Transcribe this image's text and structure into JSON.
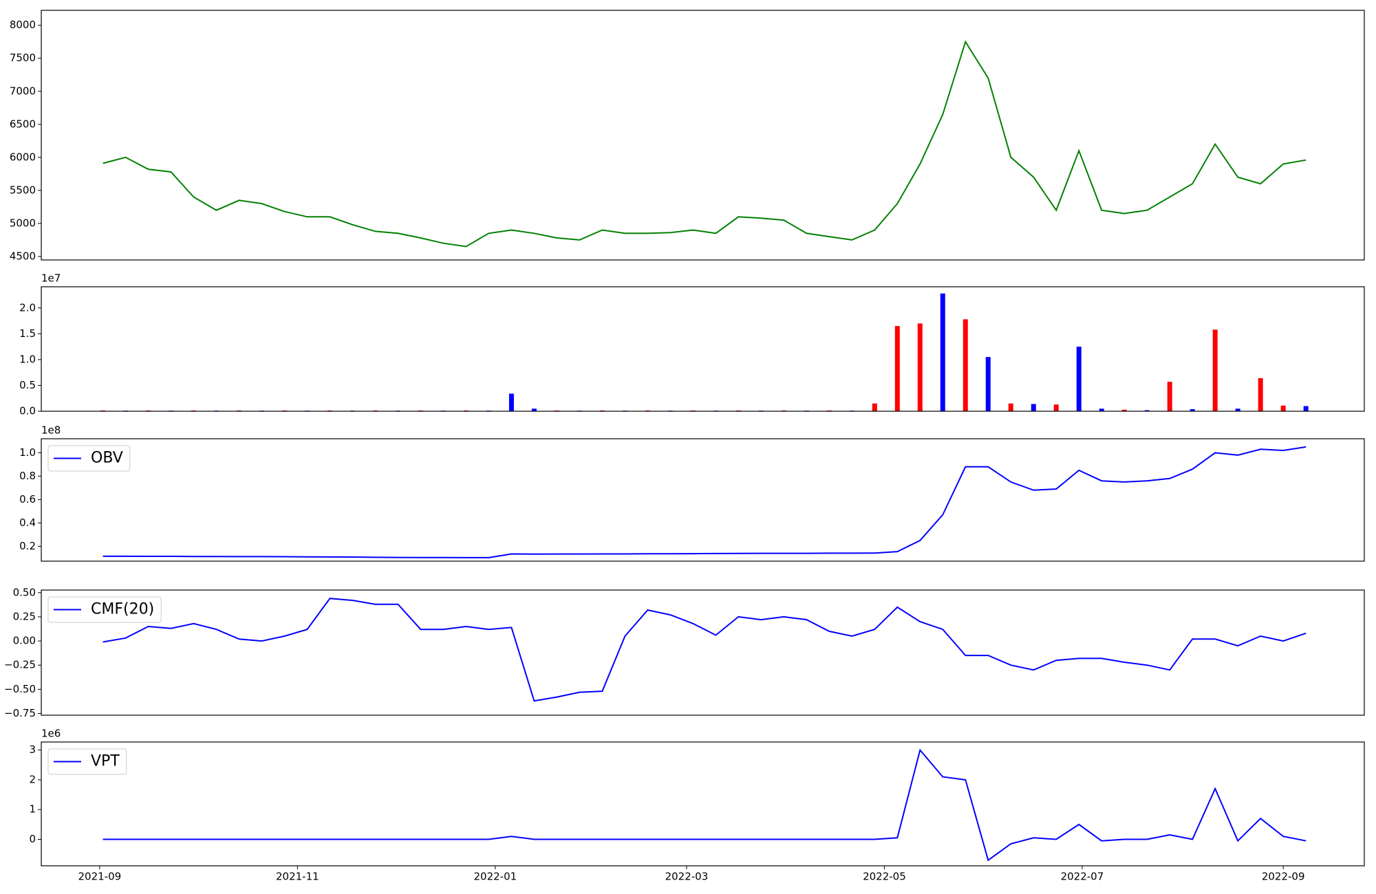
{
  "chart_data": {
    "x": [
      18872,
      18879,
      18886,
      18893,
      18900,
      18907,
      18914,
      18921,
      18928,
      18935,
      18942,
      18949,
      18956,
      18963,
      18970,
      18977,
      18984,
      18991,
      18998,
      19005,
      19012,
      19019,
      19026,
      19033,
      19040,
      19047,
      19054,
      19061,
      19068,
      19075,
      19082,
      19089,
      19096,
      19103,
      19110,
      19117,
      19124,
      19131,
      19138,
      19145,
      19152,
      19159,
      19166,
      19173,
      19180,
      19187,
      19194,
      19201,
      19208,
      19215,
      19222,
      19229,
      19236,
      19243
    ],
    "xlim": [
      18853,
      19261
    ],
    "xticks": [
      {
        "value": 18871,
        "label": "2021-09"
      },
      {
        "value": 18932,
        "label": "2021-11"
      },
      {
        "value": 18993,
        "label": "2022-01"
      },
      {
        "value": 19052,
        "label": "2022-03"
      },
      {
        "value": 19113,
        "label": "2022-05"
      },
      {
        "value": 19174,
        "label": "2022-07"
      },
      {
        "value": 19236,
        "label": "2022-09"
      }
    ],
    "panels": [
      {
        "type": "line",
        "ylim": [
          4447,
          8226
        ],
        "yticks": [
          4500,
          5000,
          5500,
          6000,
          6500,
          7000,
          7500,
          8000
        ],
        "series": [
          {
            "color": "green",
            "values": [
              5910,
              6000,
              5820,
              5780,
              5400,
              5200,
              5350,
              5300,
              5180,
              5100,
              5100,
              4980,
              4880,
              4850,
              4780,
              4700,
              4650,
              4850,
              4900,
              4850,
              4780,
              4750,
              4900,
              4850,
              4850,
              4860,
              4900,
              4850,
              5100,
              5080,
              5050,
              4850,
              4800,
              4750,
              4900,
              5300,
              5900,
              6650,
              7750,
              7200,
              6000,
              5700,
              5200,
              6100,
              5200,
              5150,
              5200,
              5400,
              5600,
              6200,
              5700,
              5600,
              5900,
              5960
            ]
          }
        ]
      },
      {
        "type": "bar",
        "offset_label": "1e7",
        "ylim": [
          0,
          24100000
        ],
        "yticks": [
          {
            "value": 0,
            "label": "0.0"
          },
          {
            "value": 5000000,
            "label": "0.5"
          },
          {
            "value": 10000000,
            "label": "1.0"
          },
          {
            "value": 15000000,
            "label": "1.5"
          },
          {
            "value": 20000000,
            "label": "2.0"
          }
        ],
        "series": [
          {
            "color": "red",
            "values": [
              150000,
              null,
              150000,
              null,
              150000,
              null,
              150000,
              null,
              150000,
              null,
              150000,
              null,
              150000,
              null,
              150000,
              null,
              150000,
              null,
              null,
              null,
              150000,
              null,
              150000,
              null,
              150000,
              null,
              150000,
              null,
              150000,
              null,
              150000,
              null,
              150000,
              null,
              1500000,
              16500000,
              17000000,
              null,
              17800000,
              null,
              1500000,
              null,
              1300000,
              null,
              null,
              300000,
              null,
              5700000,
              null,
              15800000,
              null,
              6400000,
              1100000,
              null
            ]
          },
          {
            "color": "blue",
            "values": [
              null,
              120000,
              null,
              120000,
              null,
              120000,
              null,
              120000,
              null,
              120000,
              null,
              120000,
              null,
              120000,
              null,
              120000,
              null,
              120000,
              3400000,
              500000,
              null,
              120000,
              null,
              120000,
              null,
              120000,
              null,
              120000,
              null,
              120000,
              null,
              120000,
              null,
              120000,
              null,
              null,
              null,
              22800000,
              null,
              10500000,
              null,
              1400000,
              null,
              12500000,
              500000,
              null,
              200000,
              null,
              400000,
              null,
              500000,
              null,
              null,
              1000000
            ]
          }
        ]
      },
      {
        "type": "line",
        "offset_label": "1e8",
        "ylim": [
          7300000,
          112000000
        ],
        "legend": "upper left",
        "yticks": [
          {
            "value": 20000000,
            "label": "0.2"
          },
          {
            "value": 40000000,
            "label": "0.4"
          },
          {
            "value": 60000000,
            "label": "0.6"
          },
          {
            "value": 80000000,
            "label": "0.8"
          },
          {
            "value": 100000000,
            "label": "1.0"
          }
        ],
        "series": [
          {
            "name": "OBV",
            "color": "blue",
            "values": [
              11500000,
              11500000,
              11400000,
              11400000,
              11300000,
              11300000,
              11200000,
              11200000,
              11100000,
              11000000,
              10900000,
              10800000,
              10600000,
              10500000,
              10400000,
              10400000,
              10300000,
              10300000,
              13500000,
              13300000,
              13400000,
              13400000,
              13500000,
              13500000,
              13600000,
              13600000,
              13700000,
              13800000,
              13900000,
              14000000,
              14000000,
              14000000,
              14100000,
              14100000,
              14200000,
              15500000,
              25000000,
              47000000,
              88000000,
              88000000,
              75000000,
              68000000,
              69000000,
              85000000,
              76000000,
              75000000,
              76000000,
              78000000,
              86000000,
              100000000,
              98000000,
              103000000,
              102000000,
              105000000
            ]
          }
        ]
      },
      {
        "type": "line",
        "ylim": [
          -0.768,
          0.527
        ],
        "legend": "upper left",
        "yticks": [
          {
            "value": 0.5,
            "label": "0.50"
          },
          {
            "value": 0.25,
            "label": "0.25"
          },
          {
            "value": 0,
            "label": "0.00"
          },
          {
            "value": -0.25,
            "label": "−0.25"
          },
          {
            "value": -0.5,
            "label": "−0.50"
          },
          {
            "value": -0.75,
            "label": "−0.75"
          }
        ],
        "series": [
          {
            "name": "CMF(20)",
            "color": "blue",
            "values": [
              -0.01,
              0.03,
              0.15,
              0.13,
              0.18,
              0.12,
              0.02,
              0.0,
              0.05,
              0.12,
              0.44,
              0.42,
              0.38,
              0.38,
              0.12,
              0.12,
              0.15,
              0.12,
              0.14,
              -0.62,
              -0.58,
              -0.53,
              -0.52,
              0.05,
              0.32,
              0.27,
              0.18,
              0.06,
              0.25,
              0.22,
              0.25,
              0.22,
              0.1,
              0.05,
              0.12,
              0.35,
              0.2,
              0.12,
              -0.15,
              -0.15,
              -0.25,
              -0.3,
              -0.2,
              -0.18,
              -0.18,
              -0.22,
              -0.25,
              -0.3,
              0.02,
              0.02,
              -0.05,
              0.05,
              0.0,
              0.08
            ]
          }
        ]
      },
      {
        "type": "line",
        "offset_label": "1e6",
        "ylim": [
          -890000,
          3270000
        ],
        "legend": "upper left",
        "yticks": [
          0,
          {
            "value": 1000000,
            "label": "1"
          },
          {
            "value": 2000000,
            "label": "2"
          },
          {
            "value": 3000000,
            "label": "3"
          }
        ],
        "series": [
          {
            "name": "VPT",
            "color": "blue",
            "values": [
              0,
              0,
              0,
              0,
              0,
              0,
              0,
              0,
              0,
              0,
              0,
              0,
              0,
              0,
              0,
              0,
              0,
              0,
              100000,
              0,
              0,
              0,
              0,
              0,
              0,
              0,
              0,
              0,
              0,
              0,
              0,
              0,
              0,
              0,
              0,
              50000,
              3000000,
              2100000,
              2000000,
              -700000,
              -150000,
              50000,
              0,
              500000,
              -50000,
              0,
              0,
              150000,
              0,
              1700000,
              -50000,
              700000,
              100000,
              -50000
            ]
          }
        ]
      }
    ]
  }
}
